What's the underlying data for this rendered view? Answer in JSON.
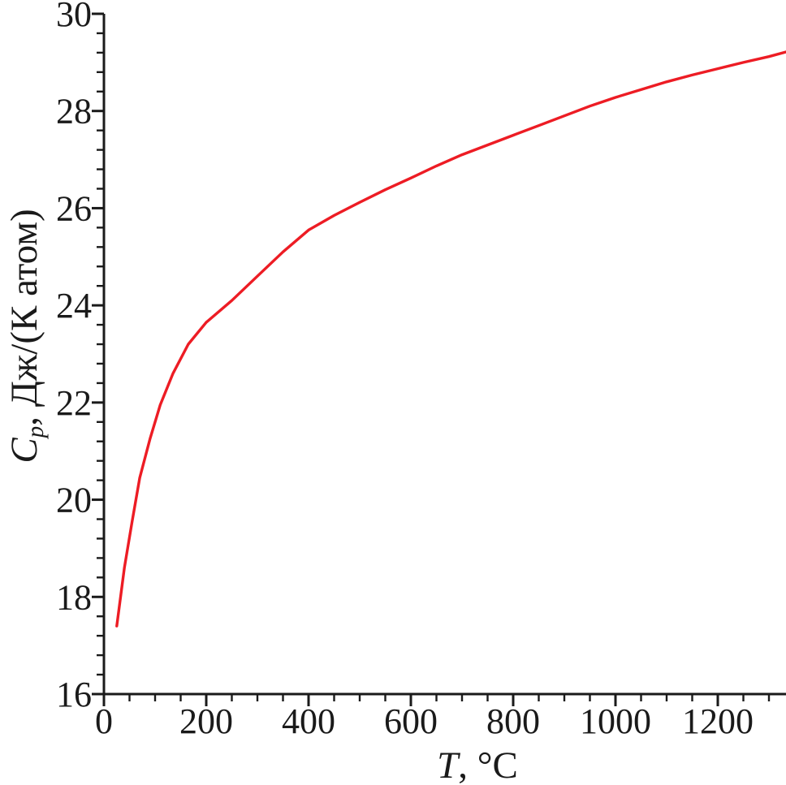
{
  "chart_data": {
    "type": "line",
    "title": "",
    "grid": false,
    "legend": false,
    "background_color": "#ffffff",
    "axis_color": "#1a1a1a",
    "x_axis": {
      "label_italic": "T",
      "label_rest": ", °C",
      "min": 0,
      "max": 1300,
      "major_ticks": [
        0,
        200,
        400,
        600,
        800,
        1000,
        1200
      ],
      "tick_labels": [
        "0",
        "200",
        "400",
        "600",
        "800",
        "1000",
        "1200"
      ],
      "minor_tick_step": 50
    },
    "y_axis": {
      "label_italic": "C",
      "label_subscript": "p",
      "label_rest": ", Дж/(К атом)",
      "min": 16,
      "max": 30,
      "major_ticks": [
        16,
        18,
        20,
        22,
        24,
        26,
        28,
        30
      ],
      "tick_labels": [
        "16",
        "18",
        "20",
        "22",
        "24",
        "26",
        "28",
        "30"
      ],
      "minor_tick_step": 0.4
    },
    "series": [
      {
        "name": "Cp",
        "color": "#ed1c24",
        "points": [
          [
            25,
            17.4
          ],
          [
            40,
            18.6
          ],
          [
            55,
            19.55
          ],
          [
            70,
            20.45
          ],
          [
            90,
            21.25
          ],
          [
            110,
            21.95
          ],
          [
            135,
            22.6
          ],
          [
            165,
            23.2
          ],
          [
            200,
            23.65
          ],
          [
            250,
            24.1
          ],
          [
            300,
            24.6
          ],
          [
            350,
            25.1
          ],
          [
            400,
            25.55
          ],
          [
            450,
            25.85
          ],
          [
            500,
            26.12
          ],
          [
            550,
            26.38
          ],
          [
            600,
            26.62
          ],
          [
            650,
            26.87
          ],
          [
            700,
            27.1
          ],
          [
            750,
            27.3
          ],
          [
            800,
            27.5
          ],
          [
            850,
            27.7
          ],
          [
            900,
            27.9
          ],
          [
            950,
            28.1
          ],
          [
            1000,
            28.28
          ],
          [
            1050,
            28.44
          ],
          [
            1100,
            28.6
          ],
          [
            1150,
            28.74
          ],
          [
            1200,
            28.87
          ],
          [
            1250,
            29.0
          ],
          [
            1300,
            29.12
          ],
          [
            1335,
            29.22
          ]
        ]
      }
    ]
  }
}
